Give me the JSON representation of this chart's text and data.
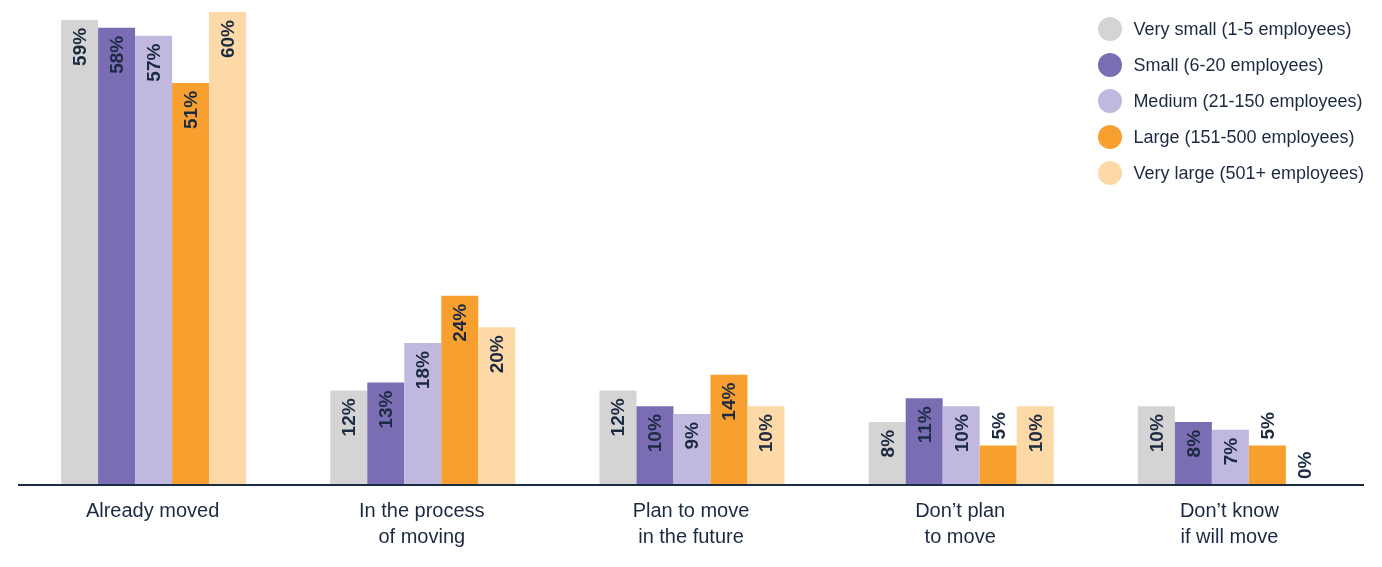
{
  "chart_data": {
    "type": "bar",
    "categories": [
      "Already moved",
      "In the process\nof moving",
      "Plan to move\nin the future",
      "Don’t plan\nto move",
      "Don’t know\nif will move"
    ],
    "series": [
      {
        "name": "Very small (1-5 employees)",
        "color": "#d4d4d4",
        "values": [
          59,
          12,
          12,
          8,
          10
        ],
        "value_labels": [
          "59%",
          "12%",
          "12%",
          "8%",
          "10%"
        ]
      },
      {
        "name": "Small (6-20 employees)",
        "color": "#7b6db3",
        "values": [
          58,
          13,
          10,
          11,
          8
        ],
        "value_labels": [
          "58%",
          "13%",
          "10%",
          "11%",
          "8%"
        ]
      },
      {
        "name": "Medium (21-150 employees)",
        "color": "#c0b8de",
        "values": [
          57,
          18,
          9,
          10,
          7
        ],
        "value_labels": [
          "57%",
          "18%",
          "9%",
          "10%",
          "7%"
        ]
      },
      {
        "name": "Large (151-500 employees)",
        "color": "#f7a030",
        "values": [
          51,
          24,
          14,
          5,
          5
        ],
        "value_labels": [
          "51%",
          "24%",
          "14%",
          "5%",
          "5%"
        ]
      },
      {
        "name": "Very large (501+ employees)",
        "color": "#fdd9a8",
        "values": [
          60,
          20,
          10,
          10,
          0
        ],
        "value_labels": [
          "60%",
          "20%",
          "10%",
          "10%",
          "0%"
        ]
      }
    ],
    "legend": "top right",
    "grid": false
  }
}
